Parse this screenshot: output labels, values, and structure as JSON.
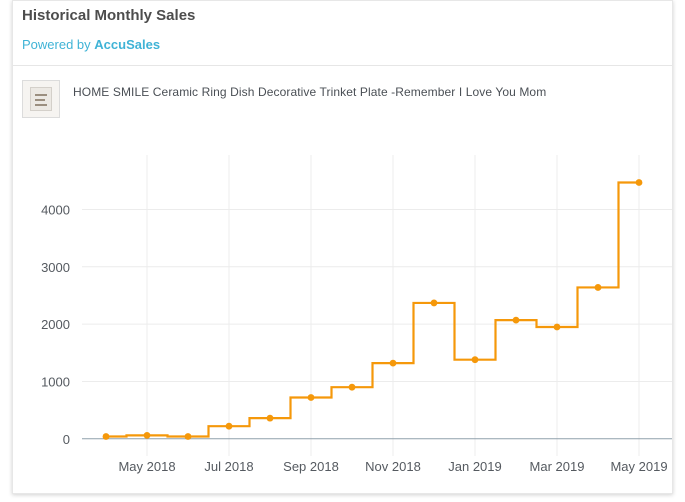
{
  "widget": {
    "title": "Historical Monthly Sales",
    "powered_prefix": "Powered by",
    "powered_brand": "AccuSales",
    "product_name": "HOME SMILE Ceramic Ring Dish Decorative Trinket Plate -Remember I Love You Mom",
    "thumbnail_icon": "product-thumbnail-icon"
  },
  "chart_data": {
    "type": "line",
    "step": "hv",
    "title": "",
    "xlabel": "",
    "ylabel": "",
    "line_color": "#f5980a",
    "x": [
      "2018-04",
      "2018-05",
      "2018-06",
      "2018-07",
      "2018-08",
      "2018-09",
      "2018-10",
      "2018-11",
      "2018-12",
      "2019-01",
      "2019-02",
      "2019-03",
      "2019-04",
      "2019-05"
    ],
    "values": [
      40,
      60,
      40,
      220,
      360,
      720,
      900,
      1320,
      2370,
      1380,
      2070,
      1950,
      2640,
      4470
    ],
    "yticks": [
      0,
      1000,
      2000,
      3000,
      4000
    ],
    "ytick_labels": [
      "0",
      "1000",
      "2000",
      "3000",
      "4000"
    ],
    "xticks": [
      "2018-05",
      "2018-07",
      "2018-09",
      "2018-11",
      "2019-01",
      "2019-03",
      "2019-05"
    ],
    "xtick_labels": [
      "May 2018",
      "Jul 2018",
      "Sep 2018",
      "Nov 2018",
      "Jan 2019",
      "Mar 2019",
      "May 2019"
    ],
    "ylim": [
      -300,
      4950
    ],
    "grid": true
  }
}
